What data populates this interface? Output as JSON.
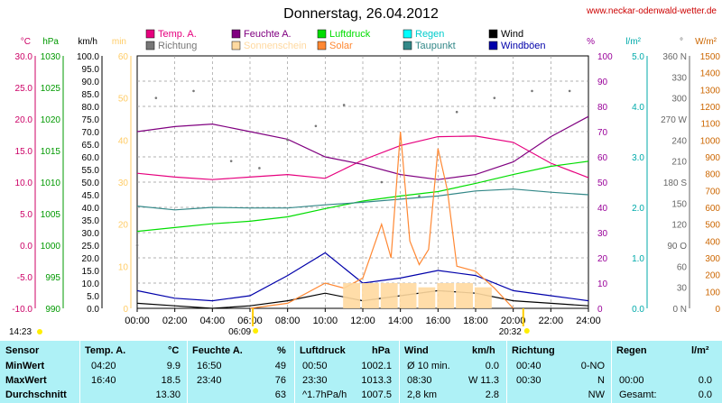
{
  "chart_data": {
    "type": "line",
    "title": "Donnerstag, 26.04.2012",
    "website": "www.neckar-odenwald-wetter.de",
    "x_ticks": [
      "00:00",
      "02:00",
      "04:00",
      "06:00",
      "08:00",
      "10:00",
      "12:00",
      "14:00",
      "16:00",
      "18:00",
      "20:00",
      "22:00",
      "24:00"
    ],
    "axes": [
      {
        "unit": "°C",
        "color": "#cc0066",
        "ticks": [
          "30.0",
          "25.0",
          "20.0",
          "15.0",
          "10.0",
          "5.0",
          "0.0",
          "-5.0",
          "-10.0"
        ]
      },
      {
        "unit": "hPa",
        "color": "#009900",
        "ticks": [
          "1030",
          "1025",
          "1020",
          "1015",
          "1010",
          "1005",
          "1000",
          "995",
          "990"
        ]
      },
      {
        "unit": "km/h",
        "color": "#000000",
        "ticks": [
          "100.0",
          "95.0",
          "90.0",
          "85.0",
          "80.0",
          "75.0",
          "70.0",
          "65.0",
          "60.0",
          "55.0",
          "50.0",
          "45.0",
          "40.0",
          "35.0",
          "30.0",
          "25.0",
          "20.0",
          "15.0",
          "10.0",
          "5.0",
          "0.0"
        ]
      },
      {
        "unit": "min",
        "color": "#ffcc66",
        "ticks": [
          "60",
          "50",
          "40",
          "30",
          "20",
          "10",
          "0"
        ]
      },
      {
        "unit": "%",
        "color": "#990099",
        "ticks": [
          "100",
          "90",
          "80",
          "70",
          "60",
          "50",
          "40",
          "30",
          "20",
          "10",
          "0"
        ]
      },
      {
        "unit": "l/m²",
        "color": "#00aaaa",
        "ticks": [
          "5.0",
          "4.0",
          "3.0",
          "2.0",
          "1.0",
          "0.0"
        ]
      },
      {
        "unit": "°",
        "color": "#666666",
        "ticks": [
          "360 N",
          "330",
          "300",
          "270 W",
          "240",
          "210",
          "180 S",
          "150",
          "120",
          "90 O",
          "60",
          "30",
          "0 N"
        ]
      },
      {
        "unit": "W/m²",
        "color": "#cc6600",
        "ticks": [
          "1500",
          "1400",
          "1300",
          "1200",
          "1100",
          "1000",
          "900",
          "800",
          "700",
          "600",
          "500",
          "400",
          "300",
          "200",
          "100",
          "0"
        ]
      }
    ],
    "legend": [
      {
        "name": "Temp. A.",
        "color": "#e6007e"
      },
      {
        "name": "Richtung",
        "color": "#777777"
      },
      {
        "name": "Feuchte A.",
        "color": "#800080"
      },
      {
        "name": "Sonnenschein",
        "color": "#ffd9a0"
      },
      {
        "name": "Luftdruck",
        "color": "#00dd00"
      },
      {
        "name": "Solar",
        "color": "#ff8833"
      },
      {
        "name": "Regen",
        "color": "#00ffff"
      },
      {
        "name": "Taupunkt",
        "color": "#338888"
      },
      {
        "name": "Wind",
        "color": "#000000"
      },
      {
        "name": "Windböen",
        "color": "#0000aa"
      }
    ],
    "sunrise": "06:09",
    "sunset": "20:32",
    "min_time": "14:23",
    "series": [
      {
        "name": "Temp. A.",
        "unit": "°C",
        "x": [
          "00:00",
          "02:00",
          "04:00",
          "06:00",
          "08:00",
          "10:00",
          "12:00",
          "14:00",
          "16:00",
          "18:00",
          "20:00",
          "22:00",
          "24:00"
        ],
        "values": [
          11.4,
          10.8,
          10.4,
          10.8,
          11.2,
          10.6,
          13.5,
          15.8,
          17.2,
          17.3,
          16.3,
          13.0,
          10.7
        ]
      },
      {
        "name": "Feuchte A.",
        "unit": "%",
        "x": [
          "00:00",
          "02:00",
          "04:00",
          "06:00",
          "08:00",
          "10:00",
          "12:00",
          "14:00",
          "16:00",
          "18:00",
          "20:00",
          "22:00",
          "24:00"
        ],
        "values": [
          70,
          72,
          73,
          70,
          67,
          60,
          57,
          53,
          51,
          53,
          58,
          68,
          76
        ]
      },
      {
        "name": "Luftdruck",
        "unit": "hPa",
        "x": [
          "00:00",
          "02:00",
          "04:00",
          "06:00",
          "08:00",
          "10:00",
          "12:00",
          "14:00",
          "16:00",
          "18:00",
          "20:00",
          "22:00",
          "24:00"
        ],
        "values": [
          1002.2,
          1002.8,
          1003.4,
          1003.8,
          1004.5,
          1005.8,
          1007.0,
          1007.8,
          1008.5,
          1009.8,
          1011.2,
          1012.5,
          1013.3
        ]
      },
      {
        "name": "Taupunkt",
        "unit": "°C",
        "x": [
          "00:00",
          "02:00",
          "04:00",
          "06:00",
          "08:00",
          "10:00",
          "12:00",
          "14:00",
          "16:00",
          "18:00",
          "20:00",
          "22:00",
          "24:00"
        ],
        "values": [
          6.2,
          5.6,
          6.0,
          5.9,
          5.9,
          6.4,
          6.8,
          7.3,
          7.8,
          8.6,
          8.9,
          8.4,
          8.0
        ]
      },
      {
        "name": "Richtung",
        "unit": "°",
        "x": [
          "00:00",
          "01:00",
          "03:00",
          "05:00",
          "06:30",
          "08:00",
          "09:30",
          "11:00",
          "13:00",
          "15:00",
          "17:00",
          "19:00",
          "21:00",
          "23:00"
        ],
        "values": [
          90,
          300,
          310,
          210,
          200,
          240,
          260,
          290,
          180,
          160,
          280,
          300,
          310,
          310
        ]
      },
      {
        "name": "Wind",
        "unit": "km/h",
        "x": [
          "00:00",
          "02:00",
          "04:00",
          "06:00",
          "08:00",
          "10:00",
          "12:00",
          "14:00",
          "16:00",
          "18:00",
          "20:00",
          "22:00",
          "24:00"
        ],
        "values": [
          2,
          1,
          0,
          1,
          3,
          6,
          3,
          5,
          7,
          6,
          3,
          2,
          1
        ]
      },
      {
        "name": "Windböen",
        "unit": "km/h",
        "x": [
          "00:00",
          "02:00",
          "04:00",
          "06:00",
          "08:00",
          "10:00",
          "12:00",
          "14:00",
          "16:00",
          "18:00",
          "20:00",
          "22:00",
          "24:00"
        ],
        "values": [
          7,
          4,
          3,
          5,
          13,
          22,
          10,
          12,
          15,
          13,
          7,
          5,
          3
        ]
      },
      {
        "name": "Solar",
        "unit": "W/m²",
        "x": [
          "06:00",
          "08:00",
          "10:00",
          "11:00",
          "12:00",
          "13:00",
          "13:30",
          "14:00",
          "14:30",
          "15:00",
          "15:30",
          "16:00",
          "16:30",
          "17:00",
          "18:00",
          "19:00",
          "20:00"
        ],
        "values": [
          0,
          30,
          150,
          120,
          180,
          500,
          300,
          1050,
          400,
          260,
          350,
          950,
          700,
          250,
          220,
          120,
          0
        ]
      },
      {
        "name": "Sonnenschein",
        "unit": "min",
        "x": [
          "11:00",
          "12:00",
          "13:00",
          "14:00",
          "15:00",
          "16:00",
          "17:00",
          "18:00",
          "19:00"
        ],
        "values": [
          6,
          6,
          6,
          6,
          5,
          6,
          6,
          5,
          0
        ]
      }
    ]
  },
  "stats": {
    "headers": {
      "sensor": "Sensor",
      "temp": "Temp. A.",
      "temp_unit": "°C",
      "feuchte": "Feuchte A.",
      "feuchte_unit": "%",
      "luftdruck": "Luftdruck",
      "luftdruck_unit": "hPa",
      "wind": "Wind",
      "wind_unit": "km/h",
      "richtung": "Richtung",
      "regen": "Regen",
      "regen_unit": "l/m²"
    },
    "rows": [
      {
        "label": "MinWert",
        "temp_time": "04:20",
        "temp_val": "9.9",
        "feuchte_time": "16:50",
        "feuchte_val": "49",
        "druck_time": "00:50",
        "druck_val": "1002.1",
        "wind_time": "Ø 10 min.",
        "wind_val": "0.0",
        "richtung_time": "00:40",
        "richtung_val": "0-NO",
        "regen_time": "",
        "regen_val": ""
      },
      {
        "label": "MaxWert",
        "temp_time": "16:40",
        "temp_val": "18.5",
        "feuchte_time": "23:40",
        "feuchte_val": "76",
        "druck_time": "23:30",
        "druck_val": "1013.3",
        "wind_time": "08:30",
        "wind_val": "W 11.3",
        "richtung_time": "00:30",
        "richtung_val": "N",
        "regen_time": "00:00",
        "regen_val": "0.0"
      },
      {
        "label": "Durchschnitt",
        "temp_time": "",
        "temp_val": "13.30",
        "feuchte_time": "",
        "feuchte_val": "63",
        "druck_time": "^1.7hPa/h",
        "druck_val": "1007.5",
        "wind_time": "2,8 km",
        "wind_val": "2.8",
        "richtung_time": "",
        "richtung_val": "NW",
        "regen_time": "Gesamt:",
        "regen_val": "0.0"
      }
    ]
  }
}
